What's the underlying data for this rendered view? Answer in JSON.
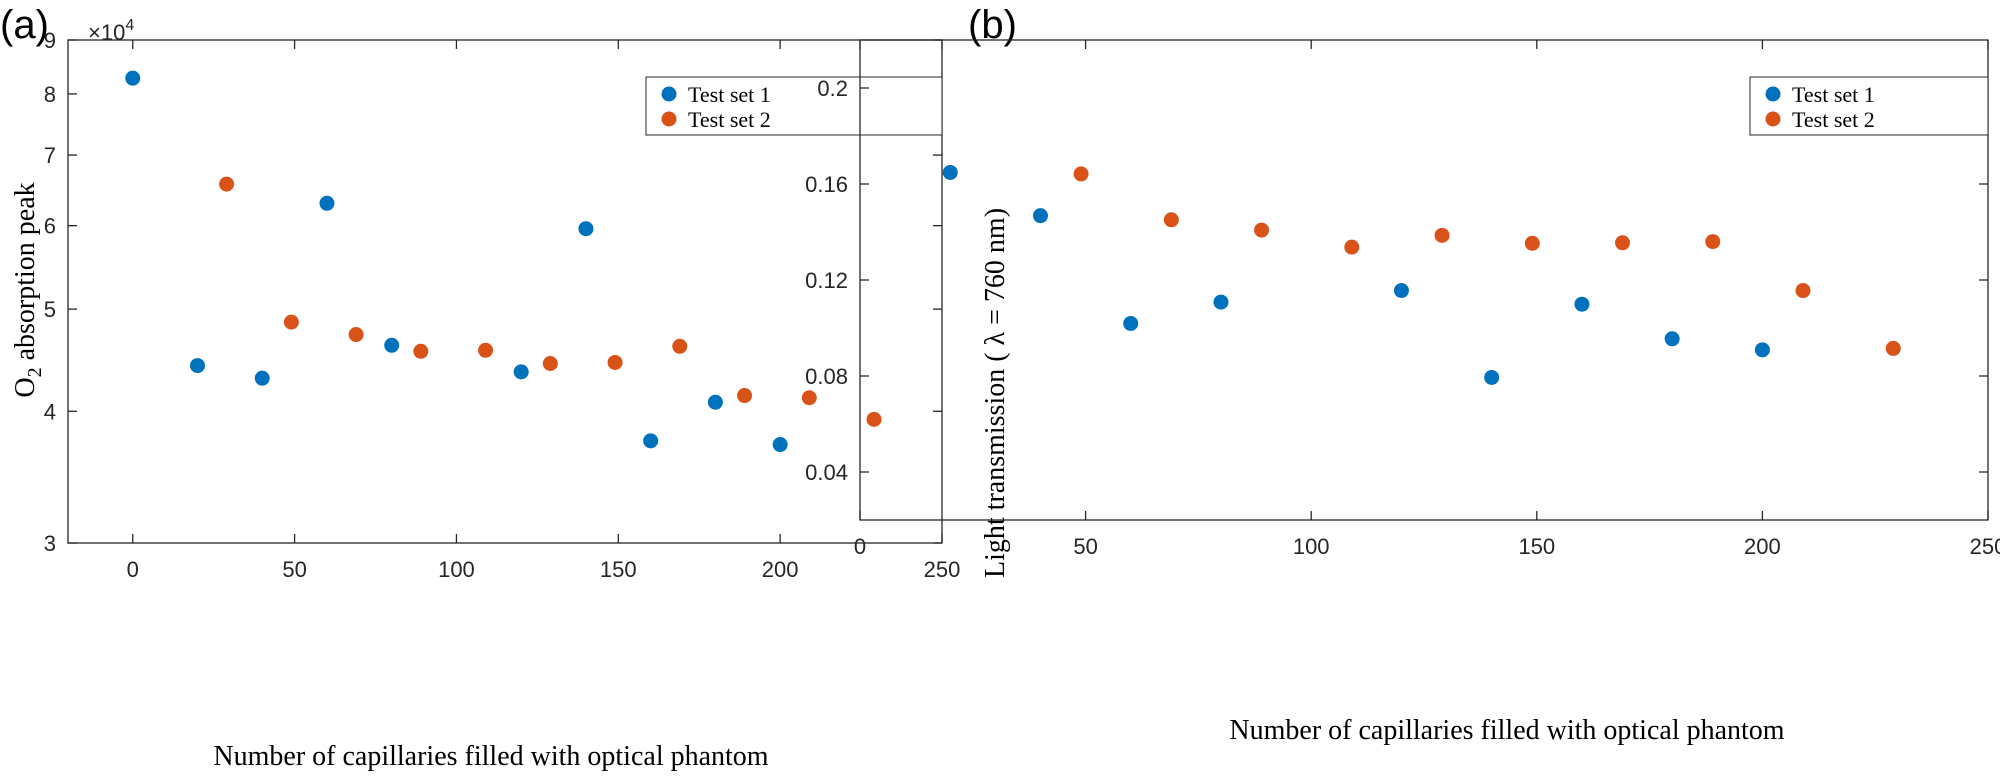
{
  "figure": {
    "panels": [
      {
        "panel_label": "(a)",
        "exponent_label": "×10",
        "exponent_power": "4",
        "ylabel_main": "O",
        "ylabel_sub": "2",
        "ylabel_rest": " absorption peak",
        "xlabel": "Number of capillaries filled with optical phantom"
      },
      {
        "panel_label": "(b)",
        "ylabel": "Light transmission ( λ = 760 nm)",
        "xlabel": "Number of capillaries filled with optical phantom"
      }
    ]
  },
  "colors": {
    "series1": "#0072BD",
    "series2": "#D95319",
    "axis": "#262626"
  },
  "chart_data": [
    {
      "type": "scatter",
      "title": "",
      "xlabel": "Number of capillaries filled with optical phantom",
      "ylabel": "O2 absorption peak",
      "y_scale_factor": "×10^4",
      "y_scale": "log",
      "xlim": [
        -20,
        250
      ],
      "ylim": [
        3,
        9
      ],
      "xticks": [
        0,
        50,
        100,
        150,
        200,
        250
      ],
      "yticks": [
        3,
        4,
        5,
        6,
        7,
        8,
        9
      ],
      "grid": false,
      "legend_position": "top-right",
      "series": [
        {
          "name": "Test set 1",
          "x": [
            0,
            20,
            40,
            60,
            80,
            120,
            140,
            160,
            180,
            200
          ],
          "y": [
            8.28,
            4.42,
            4.3,
            6.3,
            4.62,
            4.36,
            5.96,
            3.75,
            4.08,
            3.72
          ]
        },
        {
          "name": "Test set 2",
          "x": [
            29,
            49,
            69,
            89,
            109,
            129,
            149,
            169,
            189,
            209,
            229
          ],
          "y": [
            6.57,
            4.86,
            4.73,
            4.56,
            4.57,
            4.44,
            4.45,
            4.61,
            4.14,
            4.12,
            3.93
          ]
        }
      ]
    },
    {
      "type": "scatter",
      "title": "",
      "xlabel": "Number of capillaries filled with optical phantom",
      "ylabel": "Light transmission ( λ = 760 nm)",
      "xlim": [
        0,
        250
      ],
      "ylim": [
        0.02,
        0.22
      ],
      "xticks": [
        0,
        50,
        100,
        150,
        200,
        250
      ],
      "yticks": [
        0.04,
        0.08,
        0.12,
        0.16,
        0.2
      ],
      "grid": false,
      "legend_position": "top-right",
      "series": [
        {
          "name": "Test set 1",
          "x": [
            20,
            40,
            60,
            80,
            120,
            140,
            160,
            180,
            200
          ],
          "y": [
            0.1648,
            0.1468,
            0.1019,
            0.1108,
            0.1156,
            0.0794,
            0.1099,
            0.0955,
            0.0909
          ]
        },
        {
          "name": "Test set 2",
          "x": [
            49,
            69,
            89,
            109,
            129,
            149,
            169,
            189,
            209,
            229
          ],
          "y": [
            0.1642,
            0.1451,
            0.1408,
            0.1337,
            0.1386,
            0.1353,
            0.1355,
            0.136,
            0.1156,
            0.0915
          ]
        }
      ]
    }
  ]
}
